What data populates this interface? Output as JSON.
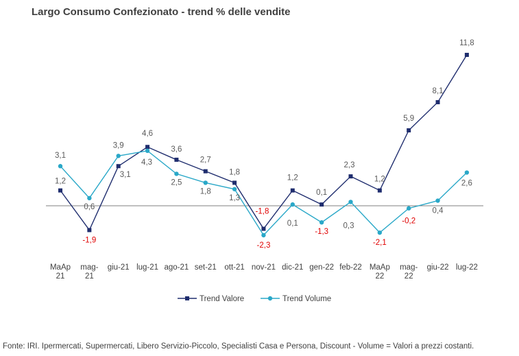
{
  "title": "Largo Consumo Confezionato - trend % delle vendite",
  "footer": "Fonte: IRI. Ipermercati, Supermercati, Libero Servizio-Piccolo,  Specialisti Casa e Persona, Discount -  Volume =  Valori a prezzi  costanti.",
  "chart_data": {
    "type": "line",
    "categories": [
      [
        "MaAp",
        "21"
      ],
      [
        "mag-",
        "21"
      ],
      [
        "giu-21"
      ],
      [
        "lug-21"
      ],
      [
        "ago-21"
      ],
      [
        "set-21"
      ],
      [
        "ott-21"
      ],
      [
        "nov-21"
      ],
      [
        "dic-21"
      ],
      [
        "gen-22"
      ],
      [
        "feb-22"
      ],
      [
        "MaAp",
        "22"
      ],
      [
        "mag-",
        "22"
      ],
      [
        "giu-22"
      ],
      [
        "lug-22"
      ]
    ],
    "series": [
      {
        "name": "Trend Valore",
        "color": "#1f2d6e",
        "marker": "square",
        "values": [
          1.2,
          -1.9,
          3.1,
          4.6,
          3.6,
          2.7,
          1.8,
          -1.8,
          1.2,
          0.1,
          2.3,
          1.2,
          5.9,
          8.1,
          11.8
        ],
        "labels": [
          "1,2",
          "-1,9",
          "3,1",
          "4,6",
          "3,6",
          "2,7",
          "1,8",
          "-1,8",
          "1,2",
          "0,1",
          "2,3",
          "1,2",
          "5,9",
          "8,1",
          "11,8"
        ]
      },
      {
        "name": "Trend Volume",
        "color": "#2aa8c8",
        "marker": "circle",
        "values": [
          3.1,
          0.6,
          3.9,
          4.3,
          2.5,
          1.8,
          1.3,
          -2.3,
          0.1,
          -1.3,
          0.3,
          -2.1,
          -0.2,
          0.4,
          2.6
        ],
        "labels": [
          "3,1",
          "0,6",
          "3,9",
          "4,3",
          "2,5",
          "1,8",
          "1,3",
          "-2,3",
          "0,1",
          "-1,3",
          "0,3",
          "-2,1",
          "-0,2",
          "0,4",
          "2,6"
        ]
      }
    ],
    "negative_label_color": "#e00000",
    "ylim": [
      -4.8,
      13
    ],
    "grid": false,
    "zero_line": true,
    "legend_position": "bottom"
  }
}
